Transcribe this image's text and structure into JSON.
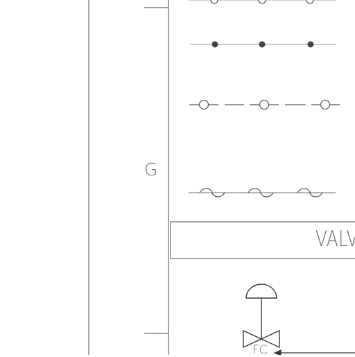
{
  "legend": {
    "row_label": "G",
    "section_title": "VALV",
    "fail_action_label": "FC"
  },
  "colors": {
    "line": "#5a5a5a",
    "light_line": "#9a9a9a",
    "filled_node": "#444444",
    "border": "#6b6b6b"
  },
  "symbols": [
    "open-circle-connected-line",
    "filled-dot-connected-line",
    "open-circle-dashed-line",
    "sine-wave-line"
  ]
}
